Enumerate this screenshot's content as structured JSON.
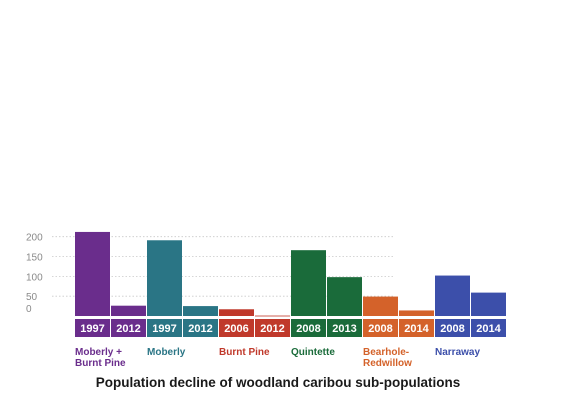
{
  "chart_data": {
    "type": "bar",
    "title": "Population decline of woodland caribou sub-populations",
    "xlabel": "",
    "ylabel": "",
    "ylim": [
      0,
      215
    ],
    "yticks": [
      0,
      50,
      100,
      150,
      200
    ],
    "grid": true,
    "groups": [
      {
        "name": "Moberly + Burnt Pine",
        "lines": [
          "Moberly +",
          "Burnt Pine"
        ],
        "color": "#6a2d8c",
        "bars": [
          {
            "year": "1997",
            "value": 212
          },
          {
            "year": "2012",
            "value": 26
          }
        ]
      },
      {
        "name": "Moberly",
        "lines": [
          "Moberly"
        ],
        "color": "#2a7585",
        "bars": [
          {
            "year": "1997",
            "value": 191
          },
          {
            "year": "2012",
            "value": 25
          }
        ]
      },
      {
        "name": "Burnt Pine",
        "lines": [
          "Burnt Pine"
        ],
        "color": "#c0392b",
        "bars": [
          {
            "year": "2006",
            "value": 17
          },
          {
            "year": "2012",
            "value": 1
          }
        ]
      },
      {
        "name": "Quintette",
        "lines": [
          "Quintette"
        ],
        "color": "#1a6b3a",
        "bars": [
          {
            "year": "2008",
            "value": 166
          },
          {
            "year": "2013",
            "value": 98
          }
        ]
      },
      {
        "name": "Bearhole-Redwillow",
        "lines": [
          "Bearhole-",
          "Redwillow"
        ],
        "color": "#d4622a",
        "bars": [
          {
            "year": "2008",
            "value": 49
          },
          {
            "year": "2014",
            "value": 14
          }
        ]
      },
      {
        "name": "Narraway",
        "lines": [
          "Narraway"
        ],
        "color": "#3c4faa",
        "bars": [
          {
            "year": "2008",
            "value": 102
          },
          {
            "year": "2014",
            "value": 59
          }
        ]
      }
    ]
  }
}
